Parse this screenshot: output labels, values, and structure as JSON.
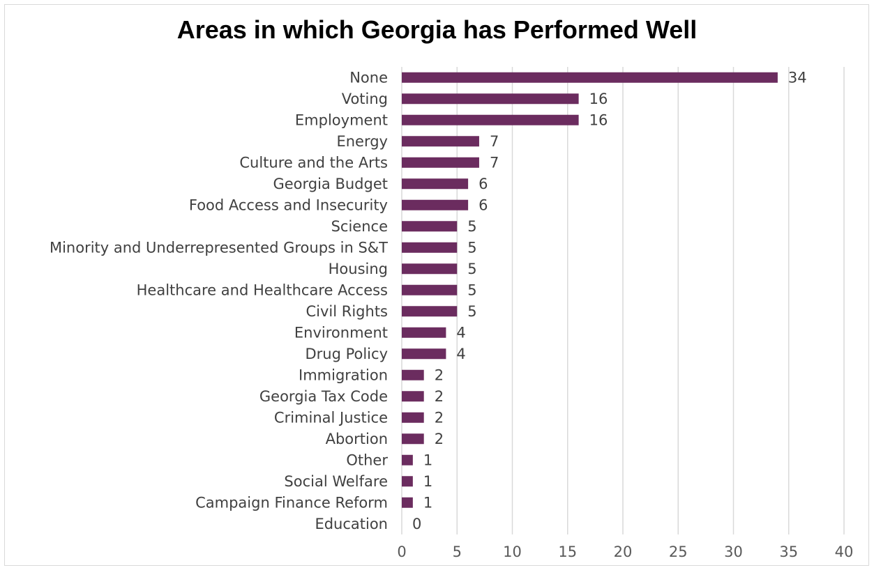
{
  "chart_data": {
    "type": "bar",
    "orientation": "horizontal",
    "title": "Areas in which Georgia has Performed Well",
    "categories": [
      "None",
      "Voting",
      "Employment",
      "Energy",
      "Culture and the Arts",
      "Georgia Budget",
      "Food Access and Insecurity",
      "Science",
      "Minority and Underrepresented Groups in S&T",
      "Housing",
      "Healthcare and Healthcare Access",
      "Civil Rights",
      "Environment",
      "Drug Policy",
      "Immigration",
      "Georgia Tax Code",
      "Criminal Justice",
      "Abortion",
      "Other",
      "Social Welfare",
      "Campaign Finance Reform",
      "Education"
    ],
    "values": [
      34,
      16,
      16,
      7,
      7,
      6,
      6,
      5,
      5,
      5,
      5,
      5,
      4,
      4,
      2,
      2,
      2,
      2,
      1,
      1,
      1,
      0
    ],
    "xlim": [
      0,
      40
    ],
    "xticks": [
      0,
      5,
      10,
      15,
      20,
      25,
      30,
      35,
      40
    ],
    "grid": true,
    "data_labels": true,
    "bar_color": "#6b2c5f",
    "gridline_color": "#d9d9d9"
  }
}
